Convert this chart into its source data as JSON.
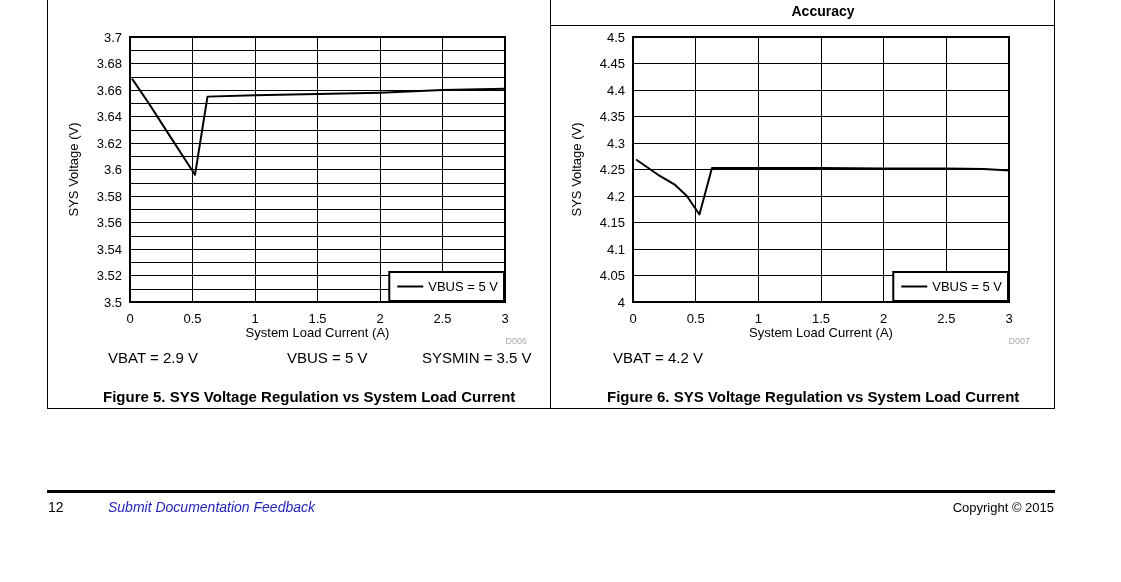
{
  "chart_data": [
    {
      "type": "line",
      "title": "Figure 5. SYS Voltage Regulation vs System Load Current",
      "xlabel": "System Load Current (A)",
      "ylabel": "SYS Voltage (V)",
      "annotations": [
        "D006",
        "VBAT = 2.9 V",
        "VBUS = 5 V",
        "SYSMIN = 3.5 V",
        "12",
        "Submit Documentation Feedback"
      ],
      "x": [
        0.02,
        0.15,
        0.3,
        0.52,
        0.62,
        1,
        1.5,
        2,
        2.5,
        3
      ],
      "series": [
        {
          "name": "VBUS = 5 V",
          "color": "#000000",
          "values": [
            3.668,
            3.65,
            3.628,
            3.596,
            3.655,
            3.656,
            3.657,
            3.658,
            3.66,
            3.661
          ]
        }
      ],
      "xlim": [
        0,
        3
      ],
      "xticks": [
        0,
        0.5,
        1,
        1.5,
        2,
        2.5,
        3
      ],
      "ylim": [
        3.5,
        3.7
      ],
      "yticks": [
        3.5,
        {
          "value": 3.51,
          "label": null
        },
        3.52,
        {
          "value": 3.53,
          "label": null
        },
        3.54,
        {
          "value": 3.55,
          "label": null
        },
        3.56,
        {
          "value": 3.57,
          "label": null
        },
        3.58,
        {
          "value": 3.59,
          "label": null
        },
        3.6,
        {
          "value": 3.61,
          "label": null
        },
        3.62,
        {
          "value": 3.63,
          "label": null
        },
        3.64,
        {
          "value": 3.65,
          "label": null
        },
        3.66,
        {
          "value": 3.67,
          "label": null
        },
        3.68,
        {
          "value": 3.69,
          "label": null
        },
        3.7
      ],
      "grid": true,
      "legend": "bottom right",
      "marker": "none",
      "line_style": "solid"
    },
    {
      "type": "line",
      "title": "Figure 6. SYS Voltage Regulation vs System Load Current",
      "xlabel": "System Load Current (A)",
      "ylabel": "SYS Voltage (V)",
      "annotations": [
        "Accuracy",
        "D007",
        "VBAT = 4.2 V",
        "Copyright © 2015"
      ],
      "x": [
        0.03,
        0.2,
        0.33,
        0.43,
        0.53,
        0.63,
        1,
        1.5,
        2,
        2.5,
        2.8,
        3
      ],
      "series": [
        {
          "name": "VBUS = 5 V",
          "color": "#000000",
          "values": [
            4.268,
            4.24,
            4.222,
            4.2,
            4.165,
            4.253,
            4.253,
            4.253,
            4.252,
            4.252,
            4.251,
            4.248
          ]
        }
      ],
      "xlim": [
        0,
        3
      ],
      "xticks": [
        0,
        0.5,
        1,
        1.5,
        2,
        2.5,
        3
      ],
      "ylim": [
        4,
        4.5
      ],
      "yticks": [
        4,
        4.05,
        4.1,
        4.15,
        4.2,
        4.25,
        4.3,
        4.35,
        4.4,
        4.45,
        4.5
      ],
      "grid": true,
      "legend": "bottom right",
      "marker": "none",
      "line_style": "solid"
    }
  ]
}
